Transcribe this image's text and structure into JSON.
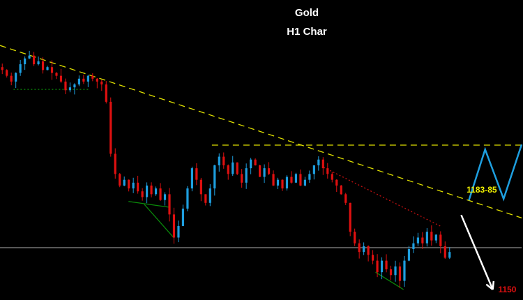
{
  "chart_data": {
    "type": "candlestick",
    "title": "Gold",
    "subtitle": "H1 Char",
    "xlim": [
      0,
      116
    ],
    "ylim": [
      1147,
      1252
    ],
    "grid": false,
    "colors": {
      "up": "#1e9fe0",
      "down": "#e01010",
      "background": "#000000"
    },
    "closes": [
      1226,
      1224,
      1222,
      1225,
      1228,
      1230,
      1231,
      1228,
      1229,
      1226,
      1227,
      1225,
      1224,
      1222,
      1219,
      1220,
      1221,
      1223,
      1222,
      1224,
      1223,
      1222,
      1221,
      1215,
      1197,
      1190,
      1186,
      1188,
      1185,
      1187,
      1184,
      1182,
      1186,
      1183,
      1185,
      1181,
      1183,
      1176,
      1168,
      1172,
      1178,
      1185,
      1192,
      1188,
      1183,
      1180,
      1185,
      1193,
      1196,
      1193,
      1190,
      1194,
      1190,
      1187,
      1192,
      1195,
      1193,
      1189,
      1192,
      1190,
      1186,
      1188,
      1185,
      1189,
      1187,
      1190,
      1186,
      1188,
      1190,
      1193,
      1195,
      1192,
      1190,
      1188,
      1186,
      1183,
      1180,
      1170,
      1166,
      1163,
      1165,
      1162,
      1160,
      1156,
      1160,
      1157,
      1155,
      1158,
      1153,
      1160,
      1164,
      1166,
      1168,
      1166,
      1170,
      1167,
      1169,
      1165,
      1161,
      1163
    ],
    "lines": [
      {
        "kind": "descending-trendline",
        "color": "#e0e000",
        "dash": true,
        "points": [
          [
            0,
            1234.5
          ],
          [
            115.7,
            1174.8
          ]
        ]
      },
      {
        "kind": "resistance",
        "color": "#e0e000",
        "dash": true,
        "points": [
          [
            47,
            1200
          ],
          [
            115.7,
            1200
          ]
        ]
      },
      {
        "kind": "support",
        "color": "#b0b0b0",
        "dash": false,
        "points": [
          [
            0,
            1164.5
          ],
          [
            115.7,
            1164.5
          ]
        ]
      },
      {
        "kind": "red-dotted-trendline",
        "color": "#c01010",
        "dash": true,
        "points": [
          [
            71.8,
            1192.3
          ],
          [
            98,
            1171.7
          ]
        ]
      },
      {
        "kind": "green-dotted",
        "color": "#0a8a0a",
        "dash": true,
        "points": [
          [
            3,
            1219.3
          ],
          [
            20,
            1219.3
          ]
        ]
      },
      {
        "kind": "green-line",
        "color": "#0a8a0a",
        "dash": false,
        "points": [
          [
            28.5,
            1180.5
          ],
          [
            37.5,
            1178.5
          ]
        ]
      },
      {
        "kind": "green-line",
        "color": "#0a8a0a",
        "dash": false,
        "points": [
          [
            32,
            1179.5
          ],
          [
            38.5,
            1168
          ]
        ]
      },
      {
        "kind": "green-line",
        "color": "#0a8a0a",
        "dash": false,
        "points": [
          [
            83.3,
            1156
          ],
          [
            89.5,
            1150
          ]
        ]
      },
      {
        "kind": "projection-zigzag",
        "color": "#1e9fe0",
        "dash": false,
        "points": [
          [
            104,
            1180.9
          ],
          [
            107.6,
            1198.5
          ],
          [
            111.7,
            1181.4
          ],
          [
            115.7,
            1200.2
          ]
        ]
      }
    ],
    "arrow": {
      "color": "#ffffff",
      "from": [
        102.3,
        1175.8
      ],
      "to": [
        109.3,
        1150
      ]
    },
    "annotations": [
      {
        "text": "1183-85",
        "color": "#f0f000",
        "at": [
          103.5,
          1184.5
        ]
      },
      {
        "text": "1150",
        "color": "#e01010",
        "at": [
          110.5,
          1150
        ]
      }
    ]
  }
}
